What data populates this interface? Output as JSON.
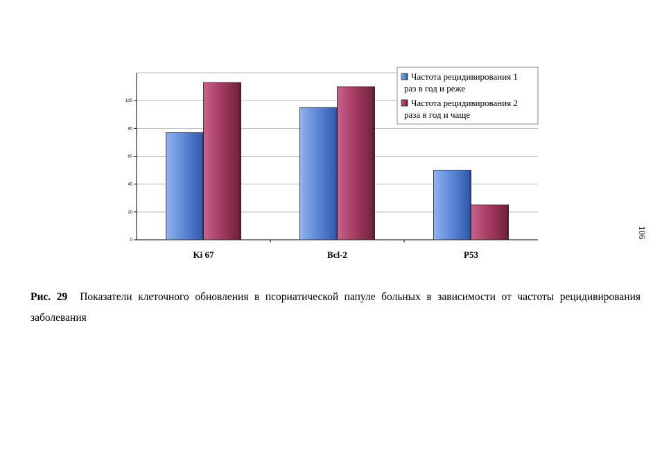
{
  "chart_data": {
    "type": "bar",
    "categories": [
      "Ki 67",
      "Bcl-2",
      "P53"
    ],
    "series": [
      {
        "name": "Частота рецидивирования 1 раз в год и реже",
        "values": [
          77,
          95,
          50
        ],
        "color": "#5b86d6"
      },
      {
        "name": "Частота рецидивирования 2 раза в год и чаще",
        "values": [
          113,
          110,
          25
        ],
        "color": "#a3395f"
      }
    ],
    "ylim": [
      0,
      120
    ],
    "yticks": [
      0,
      20,
      40,
      60,
      80,
      100
    ],
    "grid": true,
    "legend_position": "top-right",
    "title": "",
    "xlabel": "",
    "ylabel": ""
  },
  "legend": {
    "lines": [
      [
        "Частота рецидивирования 1",
        "раз в год и реже"
      ],
      [
        "Частота рецидивирования 2",
        "раза в год и чаще"
      ]
    ]
  },
  "caption": {
    "figure": "Рис. 29",
    "text": "Показатели клеточного обновления в псориатической папуле больных в зависимости от частоты рецидивирования заболевания"
  },
  "page_number": "106"
}
